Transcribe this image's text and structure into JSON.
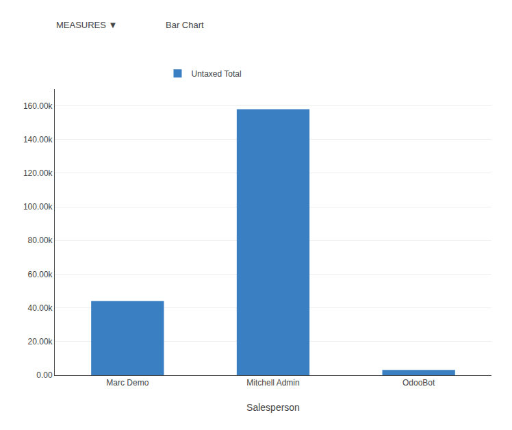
{
  "chart_data": {
    "type": "bar",
    "xlabel": "Salesperson",
    "categories": [
      "Marc Demo",
      "Mitchell Admin",
      "OdooBot"
    ],
    "series": [
      {
        "name": "Untaxed Total",
        "color": "#3a7fc1",
        "values": [
          44000,
          158000,
          3200
        ]
      }
    ],
    "ylim": [
      0,
      170000
    ],
    "yticks": [
      {
        "value": 0,
        "label": "0.00"
      },
      {
        "value": 20000,
        "label": "20.00k"
      },
      {
        "value": 40000,
        "label": "40.00k"
      },
      {
        "value": 60000,
        "label": "60.00k"
      },
      {
        "value": 80000,
        "label": "80.00k"
      },
      {
        "value": 100000,
        "label": "100.00k"
      },
      {
        "value": 120000,
        "label": "120.00k"
      },
      {
        "value": 140000,
        "label": "140.00k"
      },
      {
        "value": 160000,
        "label": "160.00k"
      }
    ],
    "grid": true,
    "legend": "top",
    "annotations": [
      "MEASURES ▼",
      "Bar Chart"
    ]
  }
}
